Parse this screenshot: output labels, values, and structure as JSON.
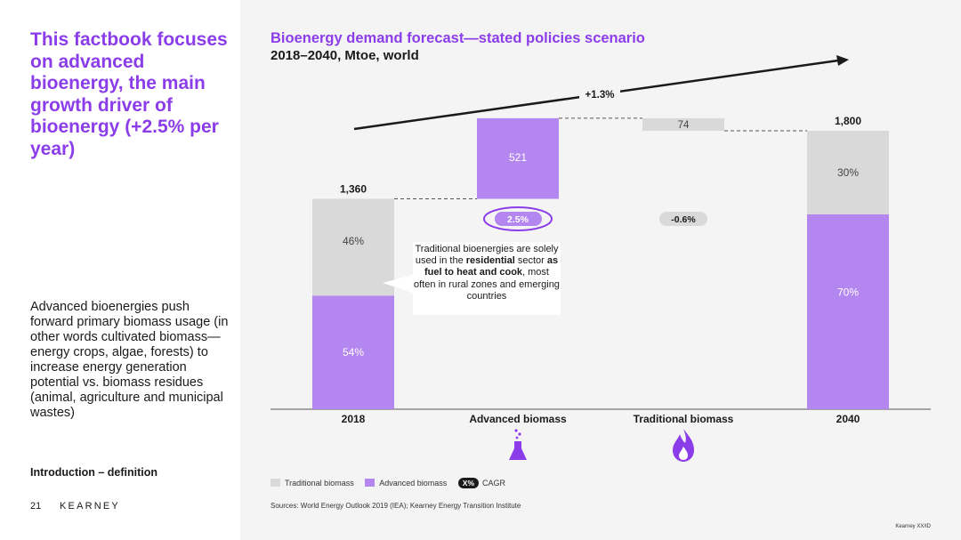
{
  "left": {
    "headline": "This factbook focuses on advanced bioenergy, the main growth driver of bioenergy (+2.5% per year)",
    "body": "Advanced bioenergies push forward primary biomass usage (in other words cultivated biomass—energy crops, algae, forests) to increase energy generation potential vs. biomass residues (animal, agriculture and municipal wastes)",
    "section_label": "Introduction – definition",
    "page_number": "21",
    "brand": "KEARNEY"
  },
  "chart_data": {
    "type": "bar",
    "title": "Bioenergy demand forecast—stated policies scenario",
    "subtitle": "2018–2040, Mtoe, world",
    "categories": [
      "2018",
      "Advanced biomass",
      "Traditional biomass",
      "2040"
    ],
    "totals": {
      "2018": 1360,
      "2040": 1800
    },
    "stacks": {
      "2018": {
        "advanced_share": "54%",
        "traditional_share": "46%",
        "advanced_pct": 54,
        "traditional_pct": 46
      },
      "2040": {
        "advanced_share": "70%",
        "traditional_share": "30%",
        "advanced_pct": 70,
        "traditional_pct": 30
      }
    },
    "changes": {
      "advanced": {
        "value": 521,
        "cagr": "2.5%"
      },
      "traditional": {
        "value": 74,
        "cagr": "-0.6%"
      }
    },
    "overall_cagr": "+1.3%",
    "data_labels": {
      "total_2018": "1,360",
      "total_2040": "1,800",
      "advanced_change": "521",
      "traditional_change": "74"
    },
    "series": [
      {
        "name": "Traditional biomass",
        "color": "#d9d9d9"
      },
      {
        "name": "Advanced biomass",
        "color": "#b386f0"
      }
    ]
  },
  "colors": {
    "accent": "#8c3dea",
    "advanced": "#b386f0",
    "traditional": "#d9d9d9",
    "dark": "#1a1a1a"
  },
  "icons": {
    "advanced": "flask-icon",
    "traditional": "flame-icon"
  },
  "callout": {
    "part1": "Traditional bioenergies are solely used in the ",
    "bold1": "residential",
    "part2": " sector ",
    "bold2": "as fuel to heat and cook",
    "part3": ", most often in rural zones and emerging countries"
  },
  "legend": {
    "traditional": "Traditional biomass",
    "advanced": "Advanced biomass",
    "cagr_chip": "X%",
    "cagr_label": "CAGR"
  },
  "sources": "Sources: World Energy Outlook 2019 (IEA); Kearney Energy Transition Institute",
  "footer_code": "Kearney XX/ID"
}
